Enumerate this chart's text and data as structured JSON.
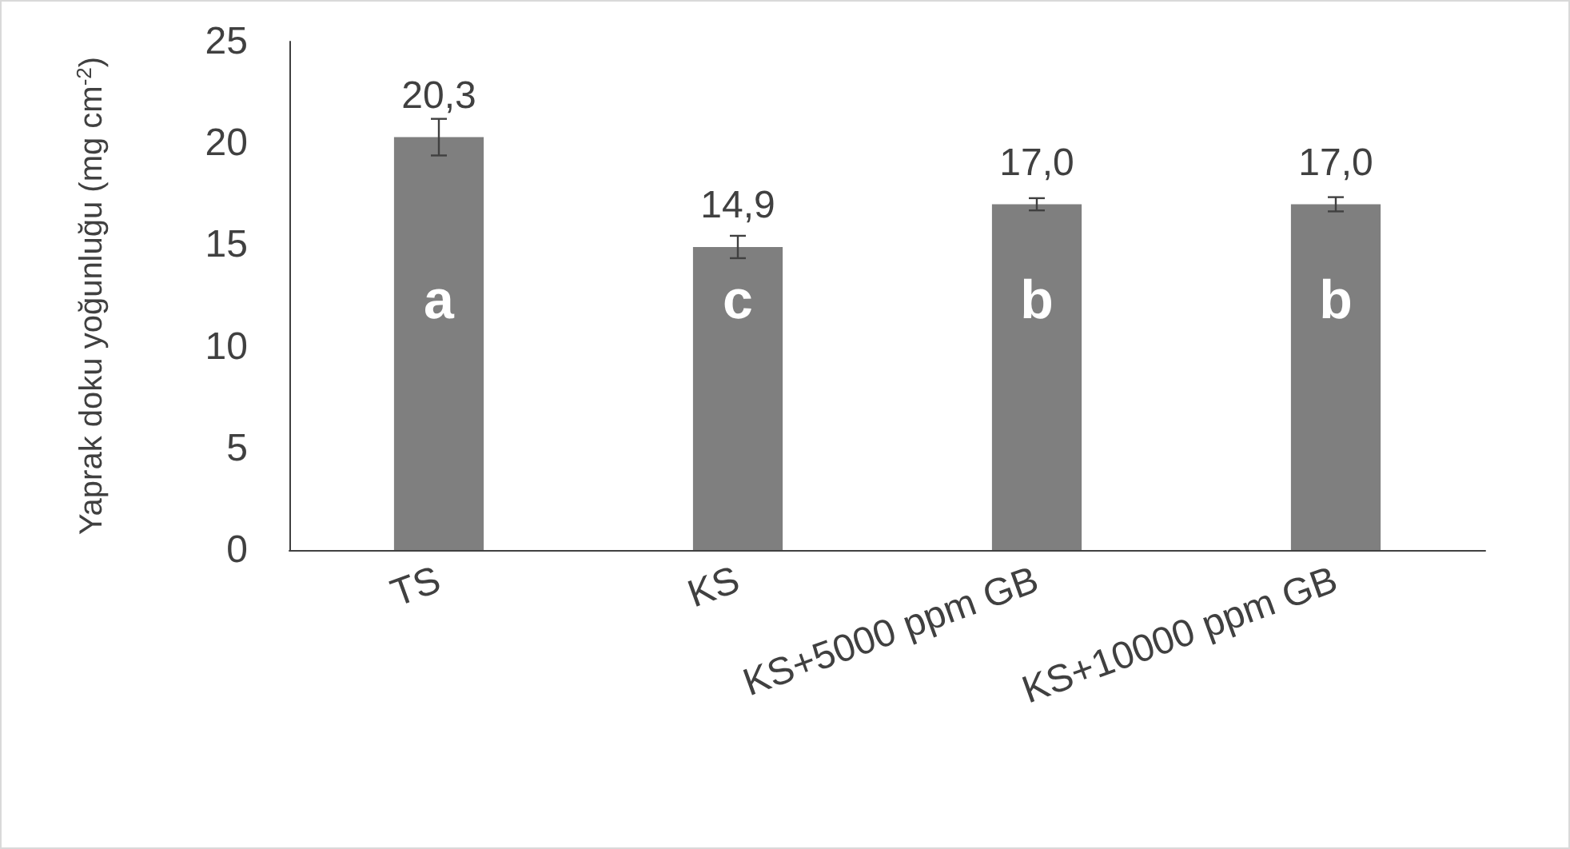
{
  "chart_data": {
    "type": "bar",
    "ylabel": "Yaprak doku yoğunluğu (mg cm$^{-2}$)",
    "categories": [
      "TS",
      "KS",
      "KS+5000 ppm GB",
      "KS+10000 ppm GB"
    ],
    "values": [
      20.3,
      14.9,
      17.0,
      17.0
    ],
    "value_labels": [
      "20,3",
      "14,9",
      "17,0",
      "17,0"
    ],
    "errors": [
      0.9,
      0.55,
      0.3,
      0.35
    ],
    "color": "#7f7f7f",
    "ylim": [
      0,
      25
    ],
    "yticks": [
      0,
      5,
      10,
      15,
      20,
      25
    ],
    "grid": false,
    "annotations": [
      "a",
      "c",
      "b",
      "b"
    ]
  }
}
